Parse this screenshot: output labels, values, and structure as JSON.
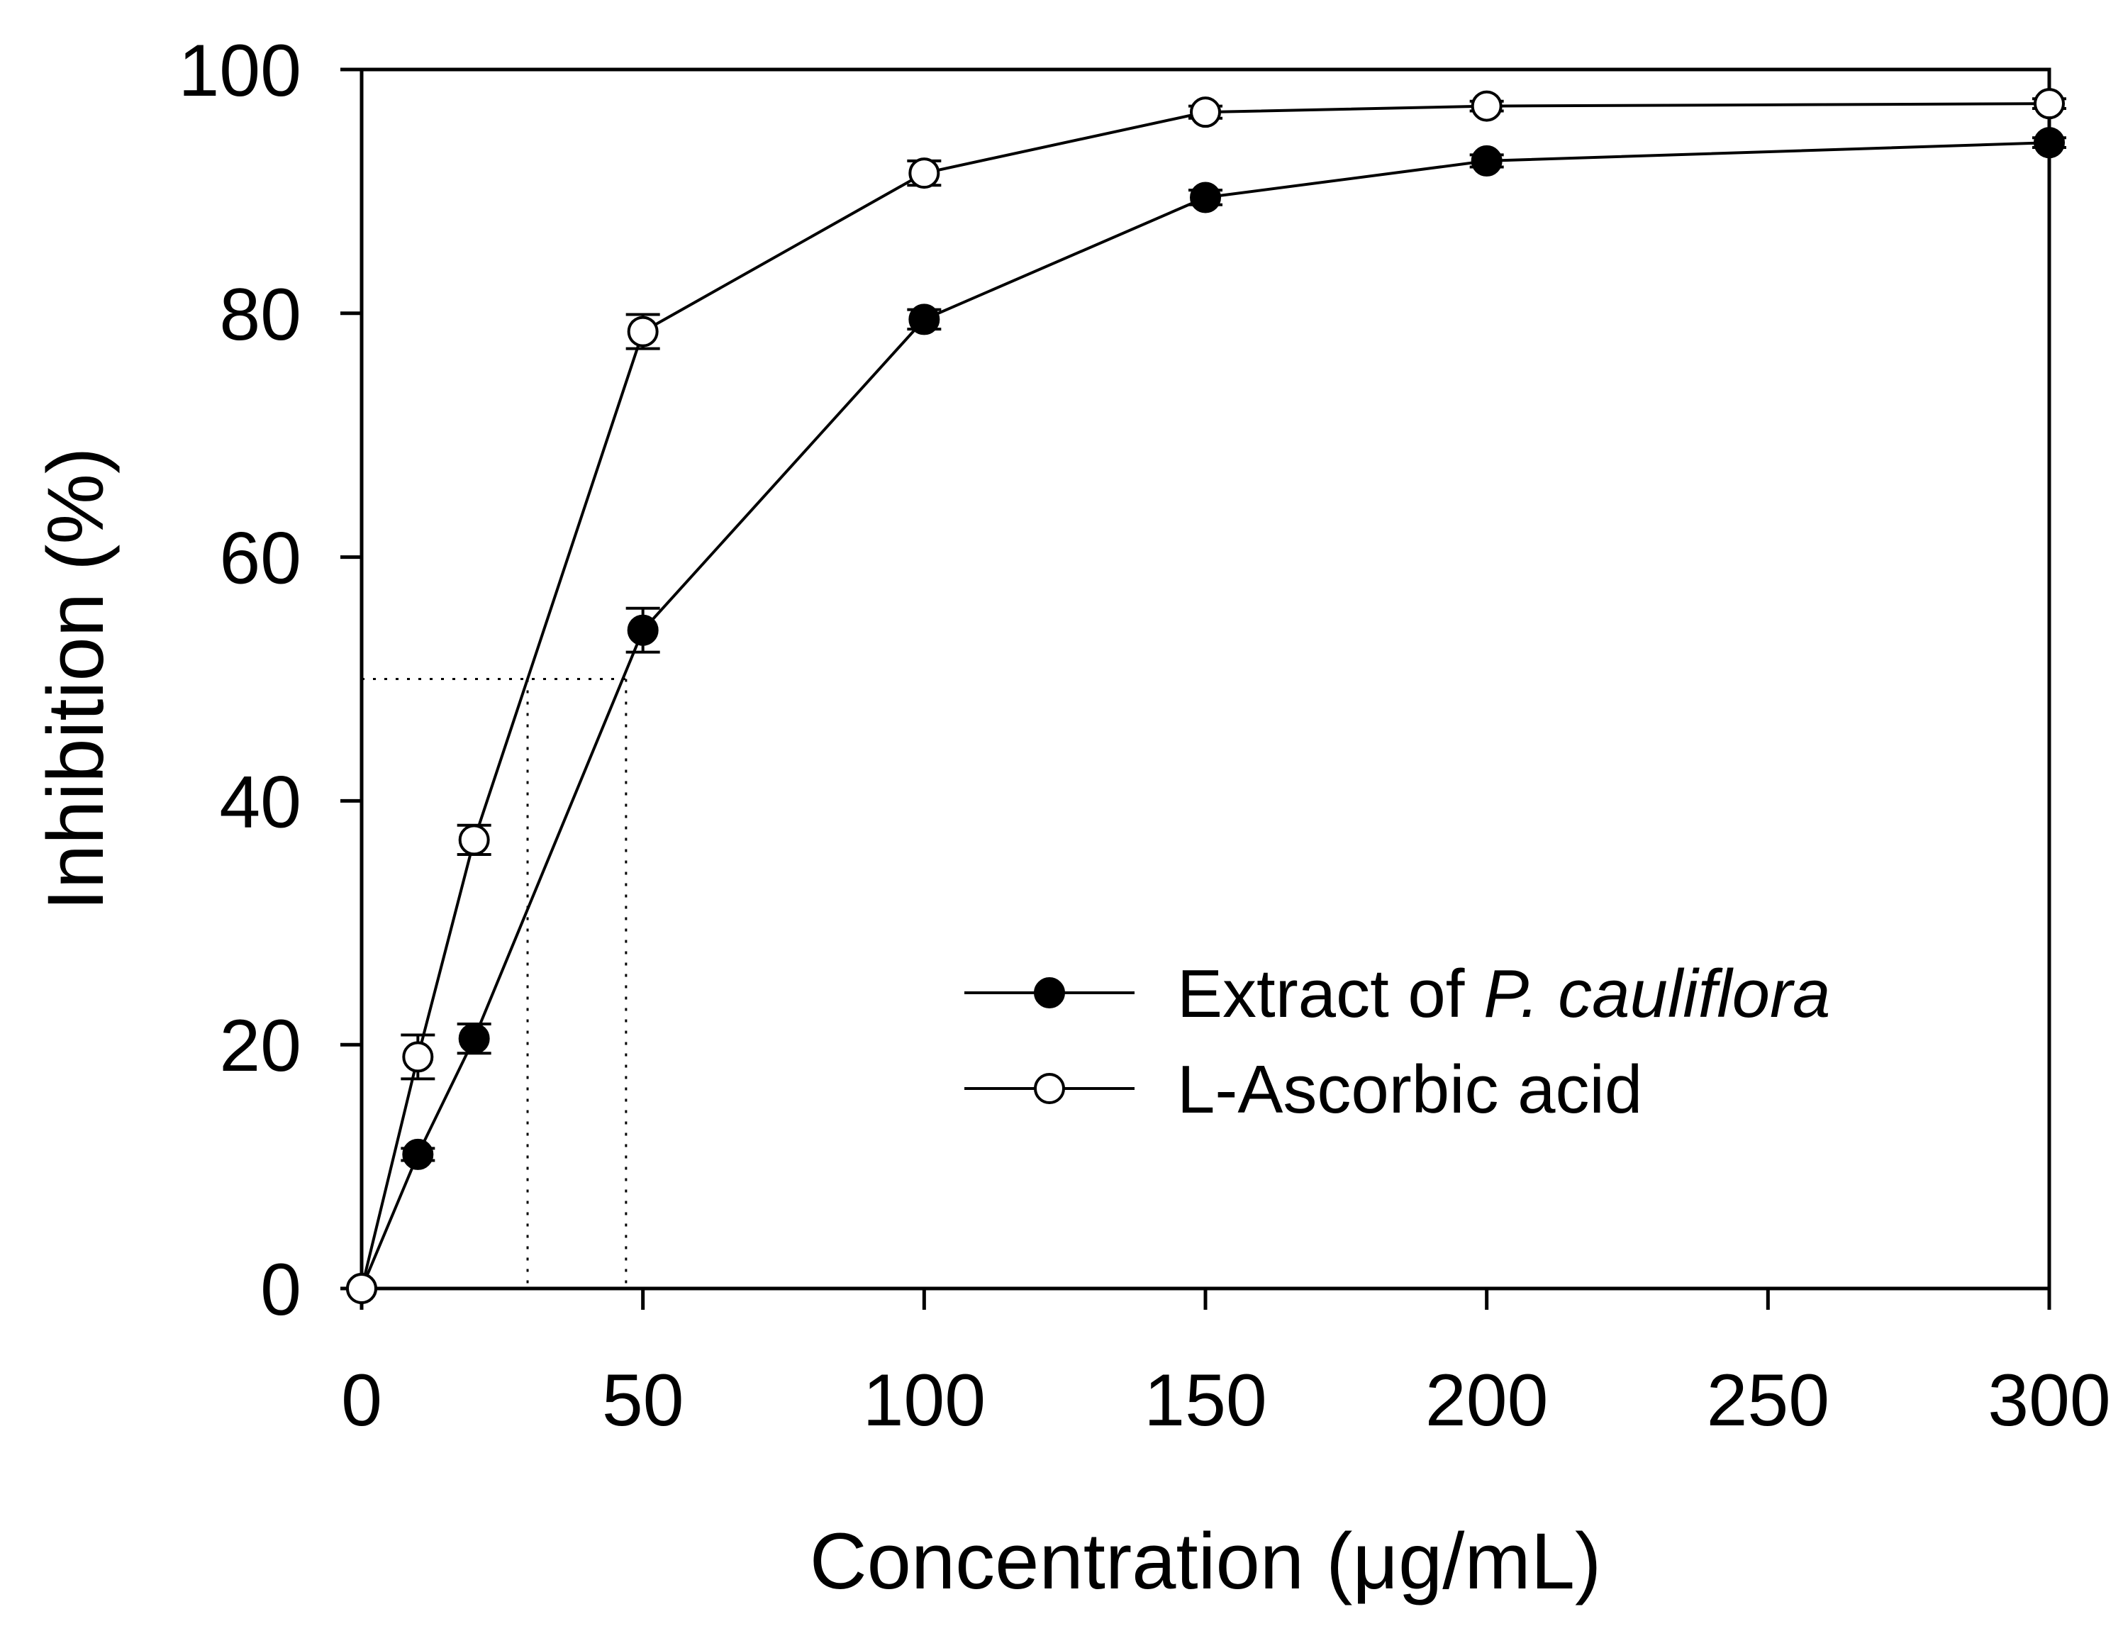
{
  "chart_data": {
    "type": "line",
    "title": "",
    "xlabel": "Concentration (μg/mL)",
    "ylabel": "Inhibition (%)",
    "xlim": [
      0,
      300
    ],
    "ylim": [
      0,
      100
    ],
    "xticks": [
      0,
      50,
      100,
      150,
      200,
      250,
      300
    ],
    "yticks": [
      0,
      20,
      40,
      60,
      80,
      100
    ],
    "grid": false,
    "legend_position": "center-right",
    "series": [
      {
        "name": "Extract of P. cauliflora",
        "legend_prefix": "Extract of ",
        "legend_italic": "P. cauliflora",
        "marker": "filled-circle",
        "x": [
          0,
          10,
          20,
          50,
          100,
          150,
          200,
          300
        ],
        "y": [
          0,
          11,
          20.5,
          54,
          79.5,
          89.5,
          92.5,
          94
        ],
        "err": [
          0,
          0.5,
          1.2,
          1.8,
          0.8,
          0.6,
          0.5,
          0.4
        ]
      },
      {
        "name": "L-Ascorbic acid",
        "legend_prefix": "L-Ascorbic acid",
        "legend_italic": "",
        "marker": "open-circle",
        "x": [
          0,
          10,
          20,
          50,
          100,
          150,
          200,
          300
        ],
        "y": [
          0,
          19,
          36.8,
          78.5,
          91.5,
          96.5,
          97,
          97.2
        ],
        "err": [
          0,
          1.8,
          1.2,
          1.4,
          1.0,
          0.5,
          0.4,
          0.4
        ]
      }
    ],
    "ic50_guides": [
      {
        "series": "L-Ascorbic acid",
        "x": 29.5,
        "y": 50
      },
      {
        "series": "Extract of P. cauliflora",
        "x": 47,
        "y": 50
      }
    ]
  }
}
